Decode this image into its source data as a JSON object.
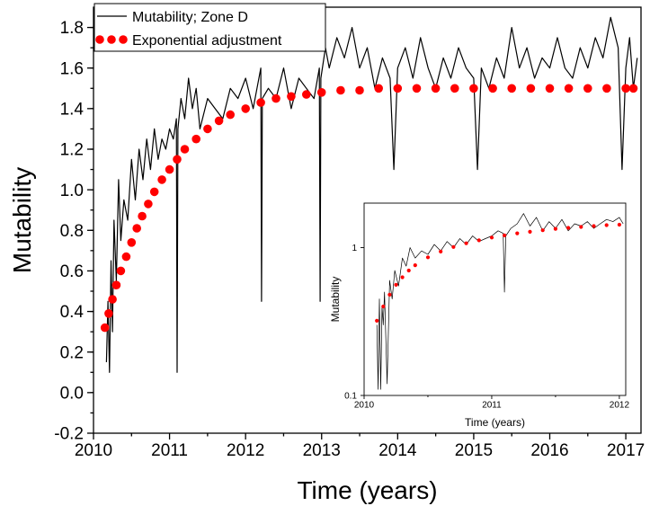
{
  "chart_data": [
    {
      "type": "line",
      "xlabel": "Time (years)",
      "ylabel": "Mutability",
      "xlim": [
        2010,
        2017.2
      ],
      "ylim": [
        -0.2,
        1.9
      ],
      "xticks": [
        2010,
        2011,
        2012,
        2013,
        2014,
        2015,
        2016,
        2017
      ],
      "xtick_labels": [
        "2010",
        "2011",
        "2012",
        "2013",
        "2014",
        "2015",
        "2016",
        "2017"
      ],
      "yticks": [
        -0.2,
        0.0,
        0.2,
        0.4,
        0.6,
        0.8,
        1.0,
        1.2,
        1.4,
        1.6,
        1.8
      ],
      "ytick_labels": [
        "-0.2",
        "0.0",
        "0.2",
        "0.4",
        "0.6",
        "0.8",
        "1.0",
        "1.2",
        "1.4",
        "1.6",
        "1.8"
      ],
      "legend_position": "top-left",
      "grid": false,
      "series": [
        {
          "name": "Mutability; Zone D",
          "style": "line",
          "color": "#000000",
          "x": [
            2010.17,
            2010.19,
            2010.21,
            2010.23,
            2010.25,
            2010.27,
            2010.3,
            2010.33,
            2010.36,
            2010.4,
            2010.45,
            2010.5,
            2010.55,
            2010.6,
            2010.65,
            2010.7,
            2010.75,
            2010.8,
            2010.85,
            2010.9,
            2010.95,
            2011.0,
            2011.05,
            2011.09,
            2011.1,
            2011.11,
            2011.15,
            2011.2,
            2011.25,
            2011.3,
            2011.35,
            2011.4,
            2011.5,
            2011.6,
            2011.7,
            2011.8,
            2011.9,
            2012.0,
            2012.1,
            2012.2,
            2012.21,
            2012.22,
            2012.3,
            2012.4,
            2012.5,
            2012.6,
            2012.7,
            2012.8,
            2012.9,
            2012.97,
            2012.98,
            2012.99,
            2013.05,
            2013.1,
            2013.2,
            2013.3,
            2013.4,
            2013.5,
            2013.6,
            2013.7,
            2013.8,
            2013.9,
            2013.95,
            2014.0,
            2014.1,
            2014.2,
            2014.3,
            2014.4,
            2014.5,
            2014.6,
            2014.7,
            2014.8,
            2014.9,
            2015.0,
            2015.05,
            2015.1,
            2015.2,
            2015.3,
            2015.4,
            2015.5,
            2015.6,
            2015.7,
            2015.8,
            2015.9,
            2016.0,
            2016.1,
            2016.2,
            2016.3,
            2016.4,
            2016.5,
            2016.6,
            2016.7,
            2016.8,
            2016.9,
            2016.95,
            2017.0,
            2017.05,
            2017.1,
            2017.15
          ],
          "y": [
            0.15,
            0.45,
            0.1,
            0.65,
            0.3,
            0.85,
            0.55,
            1.05,
            0.75,
            0.95,
            0.85,
            1.15,
            0.95,
            1.2,
            1.05,
            1.25,
            1.1,
            1.3,
            1.15,
            1.25,
            1.2,
            1.3,
            1.25,
            1.35,
            0.1,
            1.3,
            1.45,
            1.35,
            1.55,
            1.4,
            1.5,
            1.3,
            1.45,
            1.4,
            1.35,
            1.5,
            1.45,
            1.55,
            1.4,
            1.6,
            0.45,
            1.45,
            1.5,
            1.45,
            1.6,
            1.4,
            1.55,
            1.5,
            1.45,
            1.6,
            0.45,
            1.55,
            1.7,
            1.6,
            1.75,
            1.65,
            1.8,
            1.6,
            1.7,
            1.5,
            1.65,
            1.55,
            1.1,
            1.6,
            1.7,
            1.55,
            1.75,
            1.6,
            1.5,
            1.65,
            1.55,
            1.7,
            1.6,
            1.55,
            1.1,
            1.6,
            1.5,
            1.65,
            1.55,
            1.8,
            1.6,
            1.7,
            1.55,
            1.65,
            1.6,
            1.75,
            1.6,
            1.55,
            1.7,
            1.6,
            1.75,
            1.65,
            1.85,
            1.7,
            1.1,
            1.6,
            1.75,
            1.5,
            1.65
          ]
        },
        {
          "name": "Exponential adjustment",
          "style": "dots",
          "color": "#ff0000",
          "x": [
            2010.15,
            2010.2,
            2010.25,
            2010.3,
            2010.36,
            2010.43,
            2010.5,
            2010.57,
            2010.64,
            2010.72,
            2010.8,
            2010.9,
            2011.0,
            2011.1,
            2011.2,
            2011.35,
            2011.5,
            2011.65,
            2011.8,
            2012.0,
            2012.2,
            2012.4,
            2012.6,
            2012.8,
            2013.0,
            2013.25,
            2013.5,
            2013.75,
            2014.0,
            2014.25,
            2014.5,
            2014.75,
            2015.0,
            2015.25,
            2015.5,
            2015.75,
            2016.0,
            2016.25,
            2016.5,
            2016.75,
            2017.0,
            2017.1
          ],
          "y": [
            0.32,
            0.39,
            0.46,
            0.53,
            0.6,
            0.67,
            0.74,
            0.81,
            0.87,
            0.93,
            0.99,
            1.05,
            1.1,
            1.15,
            1.2,
            1.25,
            1.3,
            1.34,
            1.37,
            1.4,
            1.43,
            1.45,
            1.46,
            1.47,
            1.48,
            1.49,
            1.49,
            1.5,
            1.5,
            1.5,
            1.5,
            1.5,
            1.5,
            1.5,
            1.5,
            1.5,
            1.5,
            1.5,
            1.5,
            1.5,
            1.5,
            1.5
          ]
        }
      ]
    },
    {
      "type": "line",
      "xlabel": "Time (years)",
      "ylabel": "Mutability",
      "log_y": true,
      "xlim": [
        2010,
        2012.05
      ],
      "ylim": [
        0.1,
        2
      ],
      "xticks": [
        2010,
        2011,
        2012
      ],
      "xtick_labels": [
        "2010",
        "2011",
        "2012"
      ],
      "yticks": [
        0.1,
        1
      ],
      "ytick_labels": [
        "0.1",
        "1"
      ],
      "grid": false,
      "series": [
        {
          "style": "line",
          "color": "#000000",
          "x": [
            2010.1,
            2010.11,
            2010.12,
            2010.13,
            2010.14,
            2010.15,
            2010.16,
            2010.18,
            2010.2,
            2010.22,
            2010.24,
            2010.27,
            2010.3,
            2010.33,
            2010.36,
            2010.4,
            2010.45,
            2010.5,
            2010.55,
            2010.6,
            2010.65,
            2010.7,
            2010.75,
            2010.8,
            2010.85,
            2010.9,
            2010.95,
            2011.0,
            2011.05,
            2011.09,
            2011.1,
            2011.11,
            2011.15,
            2011.2,
            2011.25,
            2011.3,
            2011.35,
            2011.4,
            2011.45,
            2011.5,
            2011.55,
            2011.6,
            2011.65,
            2011.7,
            2011.75,
            2011.8,
            2011.85,
            2011.9,
            2011.95,
            2012.0,
            2012.03
          ],
          "y": [
            0.3,
            0.11,
            0.45,
            0.11,
            0.4,
            0.3,
            0.5,
            0.12,
            0.6,
            0.45,
            0.7,
            0.55,
            0.85,
            0.75,
            1.0,
            0.85,
            0.95,
            0.9,
            1.05,
            0.95,
            1.1,
            1.0,
            1.15,
            1.05,
            1.2,
            1.1,
            1.15,
            1.2,
            1.3,
            1.25,
            0.5,
            1.2,
            1.35,
            1.45,
            1.7,
            1.4,
            1.6,
            1.3,
            1.5,
            1.35,
            1.55,
            1.3,
            1.45,
            1.4,
            1.5,
            1.35,
            1.45,
            1.55,
            1.5,
            1.6,
            1.45
          ]
        },
        {
          "style": "dots",
          "color": "#ff0000",
          "x": [
            2010.1,
            2010.15,
            2010.2,
            2010.25,
            2010.3,
            2010.35,
            2010.4,
            2010.5,
            2010.6,
            2010.7,
            2010.8,
            2010.9,
            2011.0,
            2011.1,
            2011.2,
            2011.3,
            2011.4,
            2011.5,
            2011.6,
            2011.7,
            2011.8,
            2011.9,
            2012.0
          ],
          "y": [
            0.32,
            0.4,
            0.48,
            0.56,
            0.63,
            0.7,
            0.76,
            0.86,
            0.94,
            1.01,
            1.07,
            1.12,
            1.17,
            1.21,
            1.25,
            1.28,
            1.31,
            1.34,
            1.36,
            1.38,
            1.4,
            1.42,
            1.43
          ]
        }
      ]
    }
  ]
}
